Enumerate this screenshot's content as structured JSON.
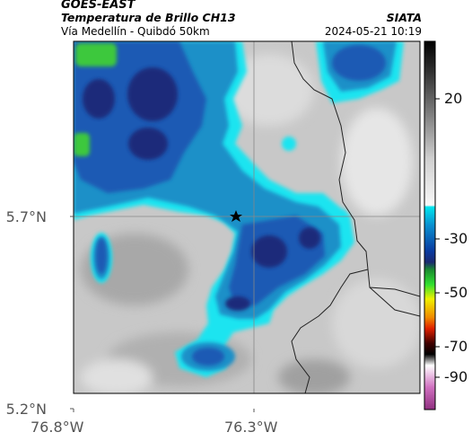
{
  "header": {
    "source": "GOES-EAST",
    "product": "Temperatura de Brillo CH13",
    "region": "Vía Medellín - Quibdó 50km",
    "org": "SIATA",
    "datetime": "2024-05-21 10:19"
  },
  "map": {
    "lat_ticks": [
      "5.7°N",
      "5.2°N"
    ],
    "lon_ticks": [
      "76.8°W",
      "76.3°W"
    ],
    "marker_icon": "star-icon",
    "colors": {
      "cold_cloud_dark": "#1a2a7a",
      "cold_cloud": "#1e5ab4",
      "cloud_mid": "#1e90c8",
      "cloud_edge": "#1ce4f0",
      "overshoot": "#3cc83c",
      "ground": "#c8c8c8"
    }
  },
  "colorbar": {
    "ticks": [
      "20",
      "-30",
      "-50",
      "-70",
      "-90"
    ]
  }
}
